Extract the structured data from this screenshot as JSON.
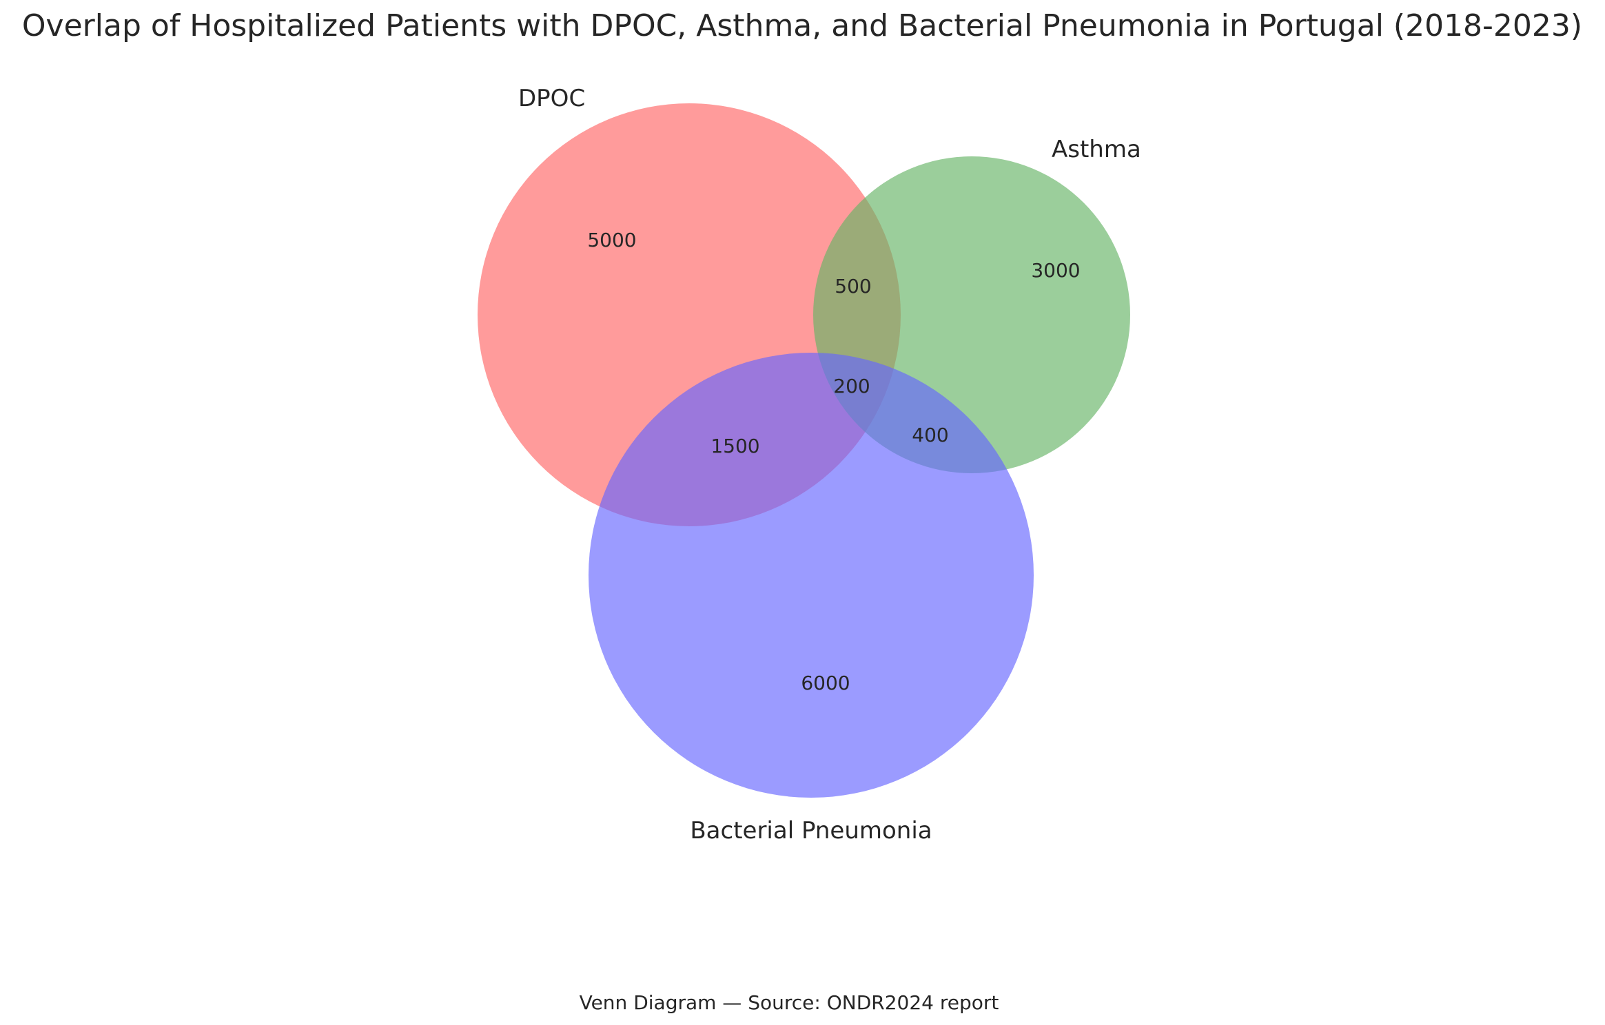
{
  "title": "Overlap of Hospitalized Patients with DPOC, Asthma, and Bacterial Pneumonia in Portugal (2018-2023)",
  "caption": "Venn Diagram — Source: ONDR2024 report",
  "sets": [
    {
      "name": "DPOC",
      "color": "#ff6666"
    },
    {
      "name": "Asthma",
      "color": "#66b366"
    },
    {
      "name": "Bacterial Pneumonia",
      "color": "#6666ff"
    }
  ],
  "regions": {
    "dpoc_only": "5000",
    "asthma_only": "3000",
    "pneumonia_only": "6000",
    "dpoc_asthma": "500",
    "dpoc_pneumonia": "1500",
    "asthma_pneumonia": "400",
    "all_three": "200"
  },
  "colors": {
    "text": "#262626",
    "background": "#ffffff"
  }
}
